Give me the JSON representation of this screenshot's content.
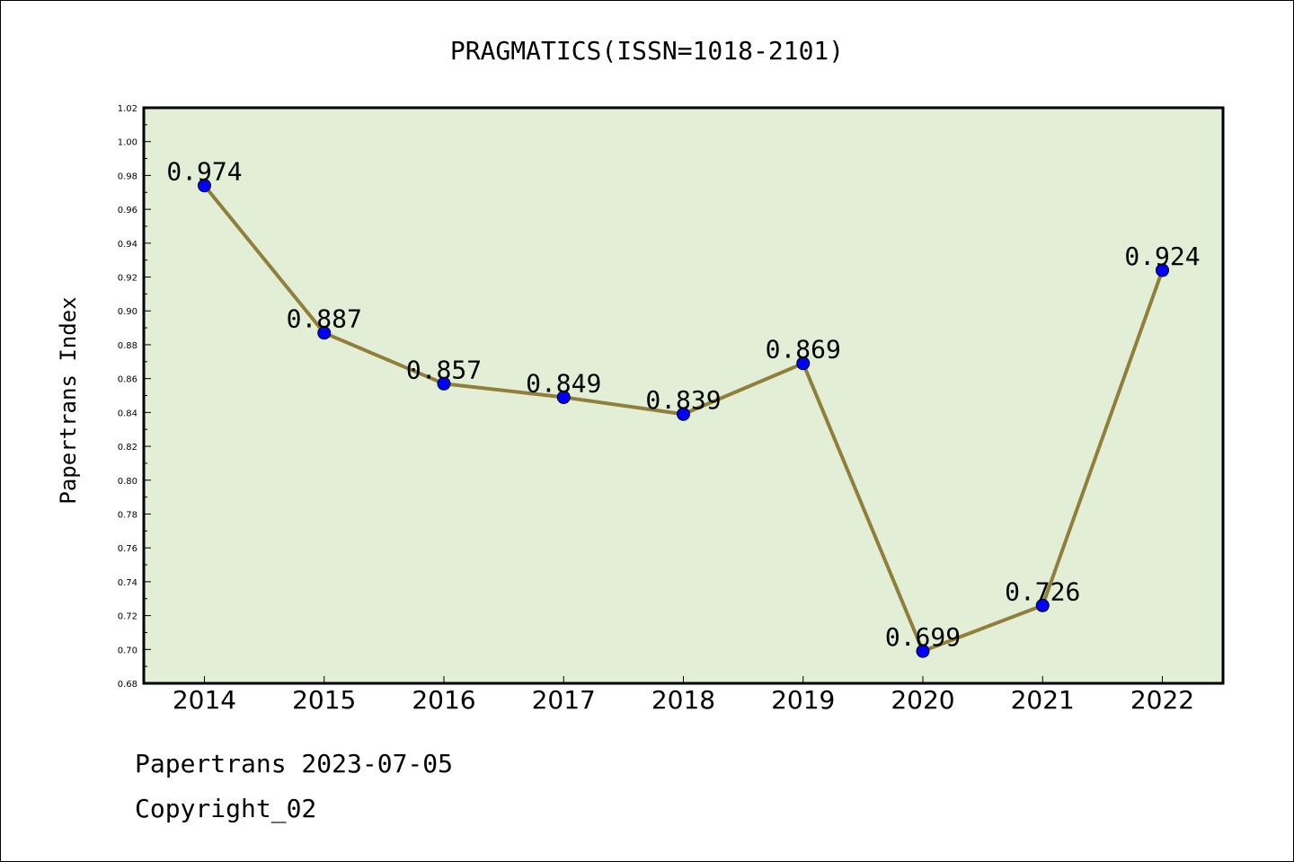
{
  "chart_data": {
    "type": "line",
    "title": "PRAGMATICS(ISSN=1018-2101)",
    "xlabel": "",
    "ylabel": "Papertrans Index",
    "categories": [
      "2014",
      "2015",
      "2016",
      "2017",
      "2018",
      "2019",
      "2020",
      "2021",
      "2022"
    ],
    "series": [
      {
        "values": [
          0.974,
          0.887,
          0.857,
          0.849,
          0.839,
          0.869,
          0.699,
          0.726,
          0.924
        ]
      }
    ],
    "data_labels": [
      "0.974",
      "0.887",
      "0.857",
      "0.849",
      "0.839",
      "0.869",
      "0.699",
      "0.726",
      "0.924"
    ],
    "ylim": [
      0.68,
      1.02
    ],
    "yticks": [
      "0.68",
      "0.70",
      "0.72",
      "0.74",
      "0.76",
      "0.78",
      "0.80",
      "0.82",
      "0.84",
      "0.86",
      "0.88",
      "0.90",
      "0.92",
      "0.94",
      "0.96",
      "0.98",
      "1.00",
      "1.02"
    ],
    "grid": false,
    "colors": {
      "plot_background": "#e2efd6",
      "line": "#8f7f3a",
      "marker": "#0000ff"
    }
  },
  "footer": {
    "line1": "Papertrans 2023-07-05",
    "line2": "Copyright_02"
  }
}
